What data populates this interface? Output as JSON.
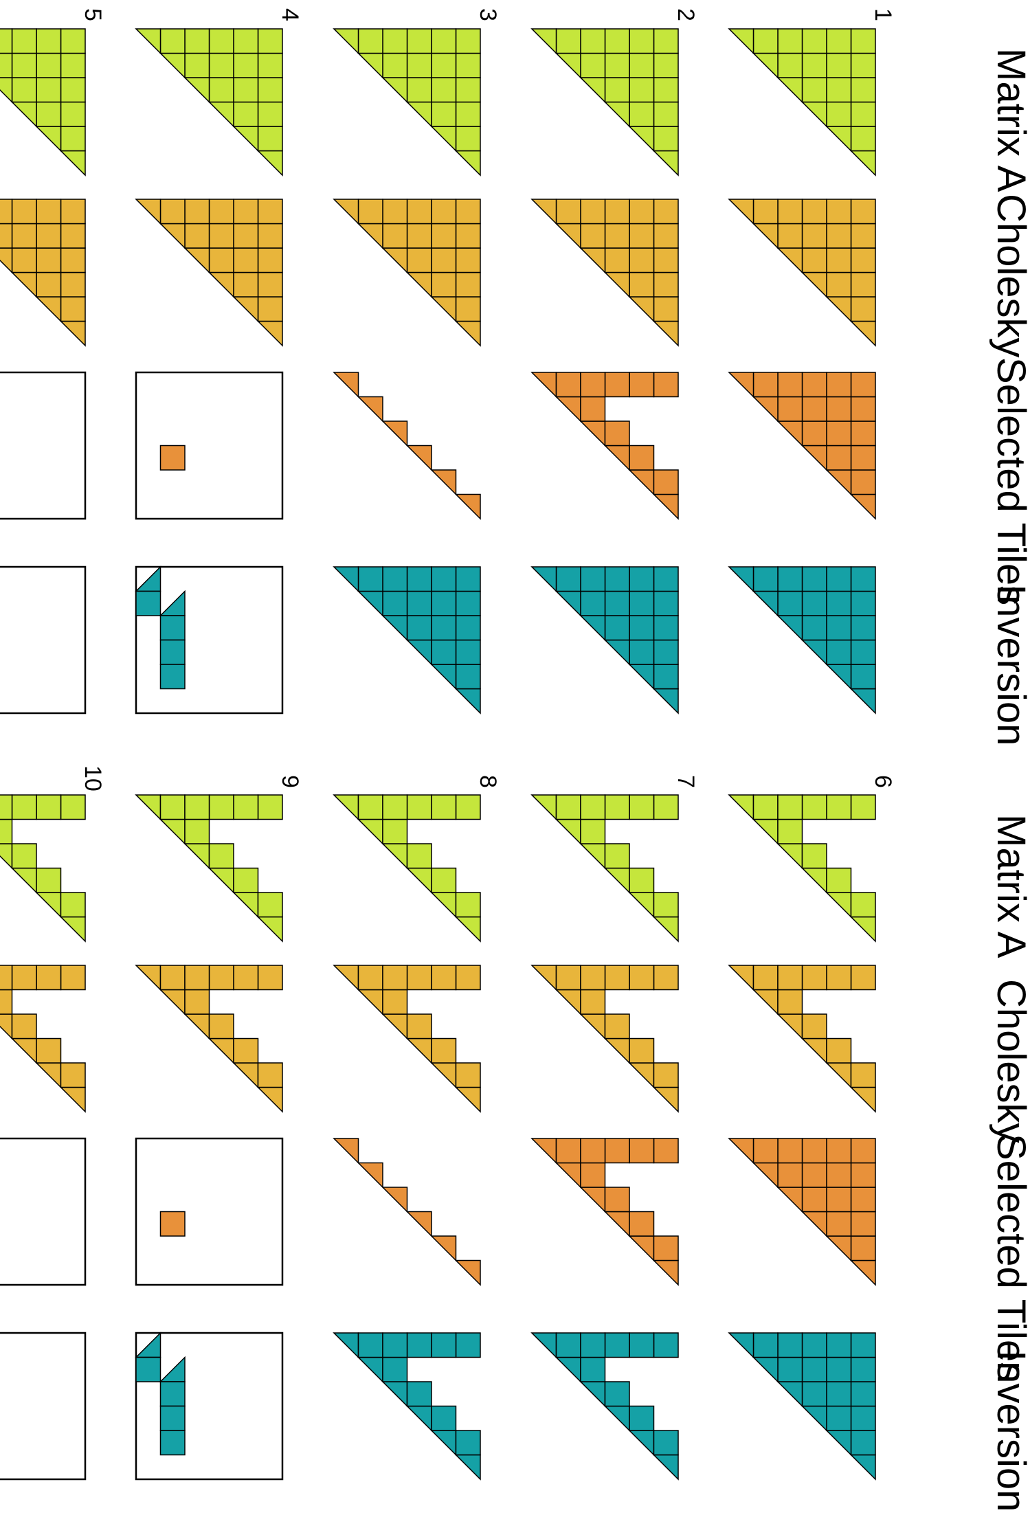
{
  "column_headers": [
    "Matrix A",
    "Cholesky",
    "Selected Tiles",
    "Inversion"
  ],
  "row_numbers": [
    "1",
    "2",
    "3",
    "4",
    "5",
    "6",
    "7",
    "8",
    "9",
    "10"
  ],
  "colors": {
    "matrix_a": "#c5e63c",
    "cholesky": "#e8b53b",
    "selected": "#e8913a",
    "inversion": "#15a1a6",
    "stroke": "#000000",
    "background": "#ffffff"
  },
  "grid_size": 6,
  "panels": [
    {
      "number": "1",
      "matrix_a": "full",
      "cholesky": "full",
      "selected": "full",
      "inversion": "full"
    },
    {
      "number": "2",
      "matrix_a": "full",
      "cholesky": "full",
      "selected": "staircase",
      "inversion": "full"
    },
    {
      "number": "3",
      "matrix_a": "full",
      "cholesky": "full",
      "selected": "diagonal",
      "inversion": "full"
    },
    {
      "number": "4",
      "matrix_a": "full",
      "cholesky": "full",
      "selected": "single",
      "inversion": "bottom-row-2"
    },
    {
      "number": "5",
      "matrix_a": "full",
      "cholesky": "full",
      "selected": "single",
      "inversion": "corner-1"
    },
    {
      "number": "6",
      "matrix_a": "staircase",
      "cholesky": "staircase",
      "selected": "full",
      "inversion": "full"
    },
    {
      "number": "7",
      "matrix_a": "staircase",
      "cholesky": "staircase",
      "selected": "staircase",
      "inversion": "staircase"
    },
    {
      "number": "8",
      "matrix_a": "staircase",
      "cholesky": "staircase",
      "selected": "diagonal",
      "inversion": "staircase"
    },
    {
      "number": "9",
      "matrix_a": "staircase",
      "cholesky": "staircase",
      "selected": "single",
      "inversion": "bottom-row-2"
    },
    {
      "number": "10",
      "matrix_a": "staircase",
      "cholesky": "staircase",
      "selected": "single",
      "inversion": "corner-1"
    }
  ]
}
